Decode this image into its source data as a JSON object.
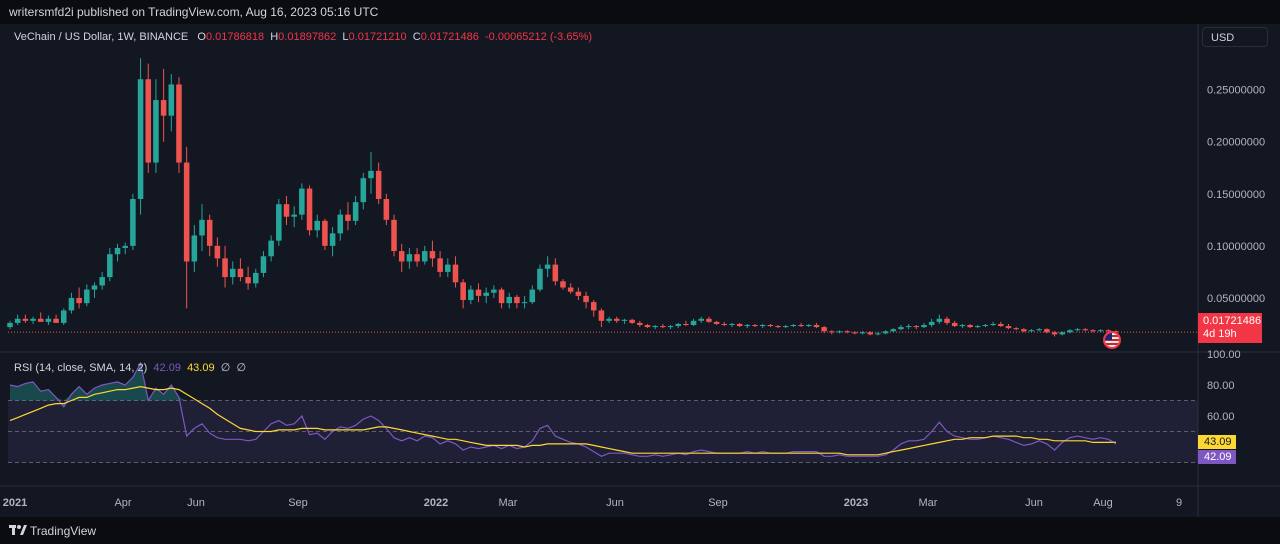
{
  "header": {
    "published_line": "writersmfd2i published on TradingView.com, Aug 16, 2023 05:16 UTC"
  },
  "legend": {
    "symbol": "VeChain / US Dollar, 1W, BINANCE",
    "open_label": "O",
    "open": "0.01786818",
    "high_label": "H",
    "high": "0.01897862",
    "low_label": "L",
    "low": "0.01721210",
    "close_label": "C",
    "close": "0.01721486",
    "change": "-0.00065212 (-3.65%)"
  },
  "currency_button": "USD",
  "last_price": {
    "value": "0.01721486",
    "countdown": "4d 19h"
  },
  "rsi_legend": {
    "title": "RSI (14, close, SMA, 14, 2)",
    "rsi_value": "42.09",
    "sma_value": "43.09",
    "icons": [
      "∅",
      "∅"
    ]
  },
  "rsi_tags": {
    "sma": "43.09",
    "rsi": "42.09"
  },
  "branding": {
    "logo": "TradingView"
  },
  "colors": {
    "up": "#26a69a",
    "down": "#ef5350",
    "rsi": "#7e57c2",
    "sma": "#fdd835",
    "bg": "#131722"
  },
  "chart_data": [
    {
      "type": "candlestick",
      "title": "VeChain / US Dollar, 1W, BINANCE",
      "ylim": [
        0.0,
        0.29
      ],
      "y_ticks": [
        0.05,
        0.1,
        0.15,
        0.2,
        0.25
      ],
      "y_tick_labels": [
        "0.05000000",
        "0.10000000",
        "0.15000000",
        "0.20000000",
        "0.25000000"
      ],
      "x_tick_labels": [
        "2021",
        "Apr",
        "Jun",
        "Sep",
        "2022",
        "Mar",
        "Jun",
        "Sep",
        "2023",
        "Mar",
        "Jun",
        "Aug",
        "9"
      ],
      "x_tick_bold": [
        true,
        false,
        false,
        false,
        true,
        false,
        false,
        false,
        true,
        false,
        false,
        false,
        false
      ],
      "ohlc": [
        [
          0.022,
          0.028,
          0.02,
          0.026
        ],
        [
          0.026,
          0.034,
          0.024,
          0.03
        ],
        [
          0.03,
          0.034,
          0.026,
          0.028
        ],
        [
          0.028,
          0.032,
          0.025,
          0.03
        ],
        [
          0.03,
          0.036,
          0.028,
          0.027
        ],
        [
          0.027,
          0.033,
          0.024,
          0.03
        ],
        [
          0.03,
          0.034,
          0.026,
          0.026
        ],
        [
          0.026,
          0.04,
          0.024,
          0.038
        ],
        [
          0.038,
          0.055,
          0.035,
          0.05
        ],
        [
          0.05,
          0.06,
          0.04,
          0.045
        ],
        [
          0.045,
          0.063,
          0.042,
          0.058
        ],
        [
          0.058,
          0.065,
          0.05,
          0.062
        ],
        [
          0.062,
          0.075,
          0.058,
          0.07
        ],
        [
          0.07,
          0.098,
          0.066,
          0.092
        ],
        [
          0.092,
          0.102,
          0.085,
          0.098
        ],
        [
          0.098,
          0.103,
          0.092,
          0.1
        ],
        [
          0.1,
          0.15,
          0.096,
          0.145
        ],
        [
          0.145,
          0.28,
          0.13,
          0.26
        ],
        [
          0.26,
          0.275,
          0.17,
          0.18
        ],
        [
          0.18,
          0.26,
          0.17,
          0.24
        ],
        [
          0.24,
          0.27,
          0.2,
          0.225
        ],
        [
          0.225,
          0.265,
          0.21,
          0.255
        ],
        [
          0.255,
          0.262,
          0.17,
          0.18
        ],
        [
          0.18,
          0.195,
          0.04,
          0.085
        ],
        [
          0.085,
          0.12,
          0.075,
          0.11
        ],
        [
          0.11,
          0.14,
          0.095,
          0.125
        ],
        [
          0.125,
          0.13,
          0.09,
          0.1
        ],
        [
          0.1,
          0.108,
          0.08,
          0.088
        ],
        [
          0.088,
          0.1,
          0.06,
          0.07
        ],
        [
          0.07,
          0.085,
          0.063,
          0.078
        ],
        [
          0.078,
          0.088,
          0.066,
          0.07
        ],
        [
          0.07,
          0.08,
          0.058,
          0.064
        ],
        [
          0.064,
          0.078,
          0.06,
          0.074
        ],
        [
          0.074,
          0.095,
          0.07,
          0.09
        ],
        [
          0.09,
          0.11,
          0.085,
          0.105
        ],
        [
          0.105,
          0.145,
          0.1,
          0.14
        ],
        [
          0.14,
          0.148,
          0.12,
          0.128
        ],
        [
          0.128,
          0.138,
          0.118,
          0.13
        ],
        [
          0.13,
          0.16,
          0.125,
          0.155
        ],
        [
          0.155,
          0.158,
          0.11,
          0.115
        ],
        [
          0.115,
          0.13,
          0.108,
          0.124
        ],
        [
          0.124,
          0.126,
          0.096,
          0.1
        ],
        [
          0.1,
          0.118,
          0.09,
          0.112
        ],
        [
          0.112,
          0.135,
          0.105,
          0.13
        ],
        [
          0.13,
          0.142,
          0.115,
          0.124
        ],
        [
          0.124,
          0.148,
          0.12,
          0.142
        ],
        [
          0.142,
          0.17,
          0.135,
          0.165
        ],
        [
          0.165,
          0.19,
          0.15,
          0.172
        ],
        [
          0.172,
          0.18,
          0.14,
          0.145
        ],
        [
          0.145,
          0.15,
          0.12,
          0.125
        ],
        [
          0.125,
          0.13,
          0.09,
          0.095
        ],
        [
          0.095,
          0.102,
          0.075,
          0.085
        ],
        [
          0.085,
          0.098,
          0.078,
          0.092
        ],
        [
          0.092,
          0.098,
          0.08,
          0.085
        ],
        [
          0.085,
          0.1,
          0.082,
          0.095
        ],
        [
          0.095,
          0.105,
          0.08,
          0.088
        ],
        [
          0.088,
          0.095,
          0.07,
          0.075
        ],
        [
          0.075,
          0.088,
          0.07,
          0.082
        ],
        [
          0.082,
          0.09,
          0.06,
          0.065
        ],
        [
          0.065,
          0.068,
          0.04,
          0.048
        ],
        [
          0.048,
          0.062,
          0.044,
          0.058
        ],
        [
          0.058,
          0.064,
          0.046,
          0.052
        ],
        [
          0.052,
          0.06,
          0.045,
          0.055
        ],
        [
          0.055,
          0.062,
          0.05,
          0.058
        ],
        [
          0.058,
          0.06,
          0.04,
          0.045
        ],
        [
          0.045,
          0.055,
          0.04,
          0.051
        ],
        [
          0.051,
          0.053,
          0.04,
          0.045
        ],
        [
          0.045,
          0.052,
          0.04,
          0.046
        ],
        [
          0.046,
          0.062,
          0.044,
          0.058
        ],
        [
          0.058,
          0.082,
          0.056,
          0.078
        ],
        [
          0.078,
          0.09,
          0.07,
          0.082
        ],
        [
          0.082,
          0.088,
          0.062,
          0.066
        ],
        [
          0.066,
          0.068,
          0.058,
          0.06
        ],
        [
          0.06,
          0.064,
          0.054,
          0.056
        ],
        [
          0.056,
          0.06,
          0.048,
          0.052
        ],
        [
          0.052,
          0.056,
          0.04,
          0.046
        ],
        [
          0.046,
          0.048,
          0.032,
          0.038
        ],
        [
          0.038,
          0.04,
          0.022,
          0.028
        ],
        [
          0.028,
          0.032,
          0.026,
          0.03
        ],
        [
          0.03,
          0.032,
          0.026,
          0.028
        ],
        [
          0.028,
          0.03,
          0.025,
          0.029
        ],
        [
          0.029,
          0.03,
          0.025,
          0.026
        ],
        [
          0.026,
          0.028,
          0.022,
          0.024
        ],
        [
          0.024,
          0.025,
          0.021,
          0.022
        ],
        [
          0.022,
          0.024,
          0.02,
          0.023
        ],
        [
          0.023,
          0.025,
          0.021,
          0.022
        ],
        [
          0.022,
          0.024,
          0.02,
          0.023
        ],
        [
          0.023,
          0.026,
          0.021,
          0.025
        ],
        [
          0.025,
          0.028,
          0.023,
          0.024
        ],
        [
          0.024,
          0.03,
          0.023,
          0.028
        ],
        [
          0.028,
          0.032,
          0.026,
          0.03
        ],
        [
          0.03,
          0.032,
          0.026,
          0.027
        ],
        [
          0.027,
          0.028,
          0.024,
          0.025
        ],
        [
          0.025,
          0.027,
          0.023,
          0.024
        ],
        [
          0.024,
          0.026,
          0.022,
          0.025
        ],
        [
          0.025,
          0.026,
          0.022,
          0.023
        ],
        [
          0.023,
          0.025,
          0.021,
          0.024
        ],
        [
          0.024,
          0.025,
          0.022,
          0.023
        ],
        [
          0.023,
          0.025,
          0.021,
          0.024
        ],
        [
          0.024,
          0.025,
          0.022,
          0.023
        ],
        [
          0.023,
          0.024,
          0.021,
          0.022
        ],
        [
          0.022,
          0.024,
          0.021,
          0.023
        ],
        [
          0.023,
          0.025,
          0.022,
          0.024
        ],
        [
          0.024,
          0.026,
          0.022,
          0.023
        ],
        [
          0.023,
          0.025,
          0.022,
          0.024
        ],
        [
          0.024,
          0.026,
          0.021,
          0.022
        ],
        [
          0.022,
          0.023,
          0.016,
          0.018
        ],
        [
          0.018,
          0.019,
          0.015,
          0.017
        ],
        [
          0.017,
          0.019,
          0.016,
          0.018
        ],
        [
          0.018,
          0.019,
          0.016,
          0.017
        ],
        [
          0.017,
          0.018,
          0.015,
          0.016
        ],
        [
          0.016,
          0.018,
          0.015,
          0.017
        ],
        [
          0.017,
          0.018,
          0.014,
          0.015
        ],
        [
          0.015,
          0.017,
          0.014,
          0.016
        ],
        [
          0.016,
          0.019,
          0.015,
          0.018
        ],
        [
          0.018,
          0.021,
          0.017,
          0.02
        ],
        [
          0.02,
          0.024,
          0.019,
          0.022
        ],
        [
          0.022,
          0.025,
          0.02,
          0.023
        ],
        [
          0.023,
          0.024,
          0.02,
          0.022
        ],
        [
          0.022,
          0.026,
          0.021,
          0.024
        ],
        [
          0.024,
          0.03,
          0.022,
          0.027
        ],
        [
          0.027,
          0.034,
          0.025,
          0.03
        ],
        [
          0.03,
          0.032,
          0.024,
          0.026
        ],
        [
          0.026,
          0.028,
          0.022,
          0.023
        ],
        [
          0.023,
          0.025,
          0.021,
          0.024
        ],
        [
          0.024,
          0.025,
          0.021,
          0.022
        ],
        [
          0.022,
          0.024,
          0.021,
          0.023
        ],
        [
          0.023,
          0.025,
          0.022,
          0.024
        ],
        [
          0.024,
          0.027,
          0.023,
          0.025
        ],
        [
          0.025,
          0.027,
          0.022,
          0.023
        ],
        [
          0.023,
          0.025,
          0.02,
          0.021
        ],
        [
          0.021,
          0.022,
          0.019,
          0.02
        ],
        [
          0.02,
          0.021,
          0.017,
          0.018
        ],
        [
          0.018,
          0.02,
          0.017,
          0.019
        ],
        [
          0.019,
          0.021,
          0.018,
          0.02
        ],
        [
          0.02,
          0.021,
          0.016,
          0.017
        ],
        [
          0.017,
          0.018,
          0.013,
          0.015
        ],
        [
          0.015,
          0.018,
          0.014,
          0.017
        ],
        [
          0.017,
          0.02,
          0.016,
          0.019
        ],
        [
          0.019,
          0.021,
          0.018,
          0.02
        ],
        [
          0.02,
          0.021,
          0.018,
          0.019
        ],
        [
          0.019,
          0.02,
          0.017,
          0.018
        ],
        [
          0.018,
          0.02,
          0.017,
          0.019
        ],
        [
          0.019,
          0.02,
          0.017,
          0.018
        ],
        [
          0.018,
          0.019,
          0.017,
          0.0172
        ]
      ],
      "last_price": 0.01721486
    },
    {
      "type": "line",
      "title": "RSI (14, close, SMA, 14, 2)",
      "ylim": [
        20,
        100
      ],
      "y_ticks": [
        60,
        80,
        100
      ],
      "y_tick_labels": [
        "60.00",
        "80.00",
        "100.00"
      ],
      "band": [
        30,
        70
      ],
      "series": [
        {
          "name": "RSI",
          "values": [
            80,
            79,
            81,
            82,
            76,
            77,
            72,
            66,
            74,
            79,
            74,
            78,
            80,
            81,
            82,
            80,
            85,
            94,
            70,
            78,
            74,
            80,
            72,
            47,
            52,
            55,
            49,
            46,
            45,
            45,
            45,
            44,
            45,
            50,
            55,
            57,
            54,
            55,
            60,
            48,
            49,
            45,
            50,
            53,
            52,
            54,
            58,
            60,
            57,
            52,
            46,
            44,
            46,
            44,
            47,
            46,
            42,
            44,
            42,
            38,
            40,
            39,
            40,
            41,
            39,
            41,
            39,
            40,
            44,
            52,
            54,
            47,
            45,
            43,
            42,
            40,
            37,
            34,
            36,
            36,
            36,
            35,
            34,
            34,
            35,
            34,
            35,
            36,
            35,
            37,
            38,
            37,
            36,
            36,
            36,
            36,
            37,
            36,
            37,
            36,
            36,
            36,
            37,
            37,
            37,
            37,
            34,
            34,
            35,
            34,
            34,
            34,
            34,
            34,
            35,
            38,
            42,
            44,
            44,
            45,
            50,
            56,
            50,
            47,
            46,
            45,
            45,
            46,
            47,
            46,
            45,
            43,
            41,
            42,
            44,
            42,
            38,
            43,
            46,
            47,
            46,
            45,
            46,
            45,
            42.09
          ]
        },
        {
          "name": "SMA",
          "values": [
            57,
            59,
            61,
            63,
            65,
            67,
            68,
            68,
            70,
            72,
            72,
            74,
            75,
            76,
            77,
            77,
            78,
            79,
            78,
            77,
            77,
            78,
            77,
            74,
            71,
            68,
            65,
            61,
            58,
            55,
            52,
            51,
            50,
            50,
            50,
            51,
            51,
            51,
            52,
            52,
            52,
            51,
            51,
            51,
            51,
            51,
            51,
            52,
            53,
            53,
            52,
            51,
            50,
            49,
            48,
            47,
            46,
            45,
            45,
            44,
            43,
            42,
            41,
            41,
            41,
            41,
            41,
            40,
            41,
            41,
            42,
            42,
            42,
            42,
            42,
            42,
            41,
            40,
            39,
            38,
            37,
            36,
            36,
            36,
            36,
            36,
            36,
            36,
            36,
            36,
            36,
            36,
            36,
            36,
            36,
            36,
            36,
            36,
            36,
            36,
            36,
            36,
            36,
            36,
            36,
            36,
            36,
            36,
            36,
            35,
            35,
            35,
            35,
            35,
            36,
            37,
            38,
            39,
            40,
            41,
            42,
            43,
            44,
            45,
            45,
            46,
            46,
            46,
            47,
            47,
            47,
            47,
            46,
            46,
            45,
            45,
            44,
            44,
            44,
            44,
            44,
            43,
            43,
            43,
            43.09
          ]
        }
      ]
    }
  ]
}
